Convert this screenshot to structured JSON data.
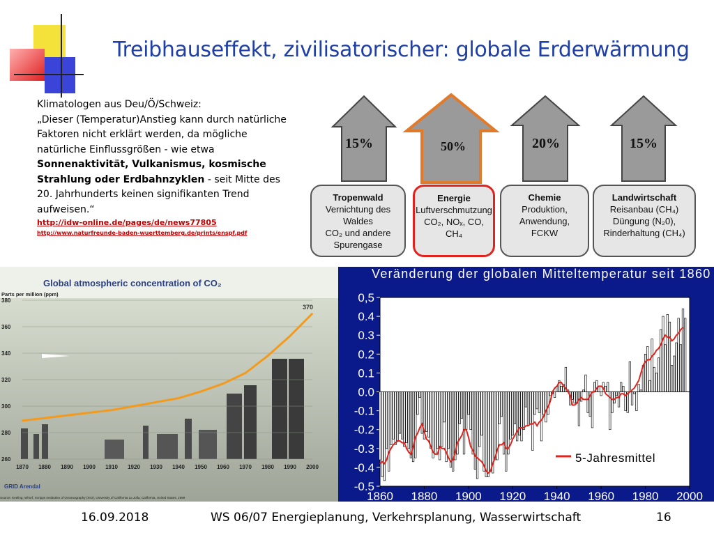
{
  "slide": {
    "title": "Treibhauseffekt, zivilisatorischer: globale Erderwärmung",
    "quote_lines": [
      {
        "text": "Klimatologen aus Deu/Ö/Schweiz:",
        "bold": false
      },
      {
        "text": "„Dieser (Temperatur)Anstieg kann durch natürliche",
        "bold": false
      },
      {
        "text": "Faktoren nicht erklärt werden, da mögliche",
        "bold": false
      },
      {
        "text": "natürliche Einflussgrößen - wie etwa",
        "bold": false
      }
    ],
    "quote_bold_1": "Sonnenaktivität, Vulkanismus, kosmische",
    "quote_bold_2": "Strahlung oder Erdbahnzyklen",
    "quote_rest_2": " - seit Mitte des",
    "quote_line_7": "20. Jahrhunderts keinen signifikanten Trend",
    "quote_line_8": "aufweisen.“",
    "link1": "http://idw-online.de/pages/de/news77805",
    "link2": "http://www.naturfreunde-baden-wuerttemberg.de/prints/enspf.pdf"
  },
  "diagram": {
    "arrows": [
      {
        "label": "15%",
        "highlight": false
      },
      {
        "label": "50%",
        "highlight": true
      },
      {
        "label": "20%",
        "highlight": false
      },
      {
        "label": "15%",
        "highlight": false
      }
    ],
    "boxes": [
      {
        "heading": "Tropenwald",
        "lines": [
          "Vernichtung des Waldes",
          "CO₂ und andere Spurengase"
        ],
        "highlight": false
      },
      {
        "heading": "Energie",
        "lines": [
          "Luftverschmutzung",
          "CO₂, NOₓ, CO, CH₄"
        ],
        "highlight": true
      },
      {
        "heading": "Chemie",
        "lines": [
          "Produktion, Anwendung,",
          "FCKW"
        ],
        "highlight": false
      },
      {
        "heading": "Landwirtschaft",
        "lines": [
          "Reisanbau (CH₄)",
          "Düngung (N₂0),",
          "Rinderhaltung (CH₄)"
        ],
        "highlight": false
      }
    ],
    "colors": {
      "highlight": "#e0231c",
      "arrow_fill": "#9a9a9a",
      "arrow_stroke": "#444444"
    }
  },
  "chart_data": [
    {
      "type": "line",
      "title": "Global atmospheric concentration of CO₂",
      "ylabel": "Parts per million (ppm)",
      "x": [
        1870,
        1880,
        1890,
        1900,
        1910,
        1920,
        1930,
        1940,
        1950,
        1960,
        1970,
        1980,
        1990,
        2000
      ],
      "series": [
        {
          "values": [
            289,
            291,
            293,
            295,
            297,
            300,
            303,
            306,
            311,
            317,
            325,
            338,
            353,
            370
          ]
        }
      ],
      "xticks": [
        "1870",
        "1880",
        "1890",
        "1900",
        "1910",
        "1920",
        "1930",
        "1940",
        "1950",
        "1960",
        "1970",
        "1980",
        "1990",
        "2000"
      ],
      "yticks": [
        "260",
        "280",
        "300",
        "320",
        "340",
        "360",
        "380"
      ],
      "ylim": [
        260,
        380
      ],
      "annotations": [
        "370"
      ],
      "source": "Source: Keeling, Whorf, Scripps Institution of Oceanography (SIO), University of California La Jolla, California, United States, 1999",
      "logo": "GRID Arendal",
      "colors": {
        "line": "#f39a1c"
      }
    },
    {
      "type": "bar",
      "title": "Veränderung der globalen Mitteltemperatur seit 1860",
      "x_range": [
        1860,
        2000
      ],
      "xticks": [
        "1860",
        "1880",
        "1900",
        "1920",
        "1940",
        "1960",
        "1980",
        "2000"
      ],
      "yticks": [
        "0,5",
        "0.4",
        "0.3",
        "0.2",
        "0.1",
        "0.0",
        "-0.1",
        "-0.2",
        "-0.3",
        "-0.4",
        "-0.5"
      ],
      "ylim": [
        -0.5,
        0.5
      ],
      "years": [
        1860,
        1861,
        1862,
        1863,
        1864,
        1865,
        1866,
        1867,
        1868,
        1869,
        1870,
        1871,
        1872,
        1873,
        1874,
        1875,
        1876,
        1877,
        1878,
        1879,
        1880,
        1881,
        1882,
        1883,
        1884,
        1885,
        1886,
        1887,
        1888,
        1889,
        1890,
        1891,
        1892,
        1893,
        1894,
        1895,
        1896,
        1897,
        1898,
        1899,
        1900,
        1901,
        1902,
        1903,
        1904,
        1905,
        1906,
        1907,
        1908,
        1909,
        1910,
        1911,
        1912,
        1913,
        1914,
        1915,
        1916,
        1917,
        1918,
        1919,
        1920,
        1921,
        1922,
        1923,
        1924,
        1925,
        1926,
        1927,
        1928,
        1929,
        1930,
        1931,
        1932,
        1933,
        1934,
        1935,
        1936,
        1937,
        1938,
        1939,
        1940,
        1941,
        1942,
        1943,
        1944,
        1945,
        1946,
        1947,
        1948,
        1949,
        1950,
        1951,
        1952,
        1953,
        1954,
        1955,
        1956,
        1957,
        1958,
        1959,
        1960,
        1961,
        1962,
        1963,
        1964,
        1965,
        1966,
        1967,
        1968,
        1969,
        1970,
        1971,
        1972,
        1973,
        1974,
        1975,
        1976,
        1977,
        1978,
        1979,
        1980,
        1981,
        1982,
        1983,
        1984,
        1985,
        1986,
        1987,
        1988,
        1989,
        1990,
        1991,
        1992,
        1993,
        1994,
        1995,
        1996,
        1997,
        1998
      ],
      "anomalies": [
        -0.36,
        -0.45,
        -0.47,
        -0.3,
        -0.42,
        -0.28,
        -0.25,
        -0.28,
        -0.26,
        -0.22,
        -0.25,
        -0.29,
        -0.27,
        -0.3,
        -0.35,
        -0.37,
        -0.35,
        -0.12,
        -0.03,
        -0.22,
        -0.25,
        -0.21,
        -0.24,
        -0.3,
        -0.35,
        -0.33,
        -0.3,
        -0.36,
        -0.29,
        -0.16,
        -0.37,
        -0.3,
        -0.4,
        -0.42,
        -0.36,
        -0.33,
        -0.17,
        -0.14,
        -0.33,
        -0.2,
        -0.12,
        -0.2,
        -0.33,
        -0.41,
        -0.46,
        -0.29,
        -0.23,
        -0.42,
        -0.45,
        -0.45,
        -0.42,
        -0.43,
        -0.36,
        -0.36,
        -0.17,
        -0.13,
        -0.33,
        -0.42,
        -0.33,
        -0.25,
        -0.23,
        -0.17,
        -0.26,
        -0.23,
        -0.26,
        -0.2,
        -0.08,
        -0.18,
        -0.17,
        -0.31,
        -0.12,
        -0.09,
        -0.11,
        -0.26,
        -0.12,
        -0.16,
        -0.12,
        -0.02,
        -0.01,
        -0.03,
        0.03,
        0.06,
        0.03,
        0.04,
        0.13,
        0.01,
        -0.07,
        -0.04,
        -0.06,
        -0.06,
        -0.18,
        -0.05,
        0.01,
        0.09,
        -0.11,
        -0.13,
        -0.19,
        0.05,
        0.06,
        0.03,
        -0.02,
        0.05,
        0.03,
        0.05,
        -0.2,
        -0.11,
        -0.06,
        -0.02,
        -0.08,
        0.05,
        0.03,
        -0.1,
        -0.11,
        0.16,
        -0.07,
        -0.01,
        -0.1,
        0.04,
        0.01,
        0.14,
        0.2,
        0.24,
        0.06,
        0.28,
        0.13,
        0.1,
        0.18,
        0.33,
        0.4,
        0.25,
        0.41,
        0.37,
        0.14,
        0.19,
        0.26,
        0.39,
        0.25,
        0.44,
        0.39
      ],
      "series": [
        {
          "name": "5-Jahresmittel",
          "values": [
            -0.38,
            -0.37,
            -0.38,
            -0.36,
            -0.32,
            -0.3,
            -0.28,
            -0.27,
            -0.26,
            -0.26,
            -0.27,
            -0.27,
            -0.3,
            -0.32,
            -0.33,
            -0.29,
            -0.24,
            -0.22,
            -0.19,
            -0.17,
            -0.21,
            -0.25,
            -0.26,
            -0.29,
            -0.32,
            -0.33,
            -0.33,
            -0.29,
            -0.3,
            -0.3,
            -0.32,
            -0.35,
            -0.37,
            -0.36,
            -0.32,
            -0.27,
            -0.25,
            -0.23,
            -0.2,
            -0.2,
            -0.24,
            -0.29,
            -0.31,
            -0.34,
            -0.35,
            -0.36,
            -0.37,
            -0.39,
            -0.42,
            -0.43,
            -0.42,
            -0.38,
            -0.35,
            -0.31,
            -0.28,
            -0.28,
            -0.27,
            -0.3,
            -0.3,
            -0.28,
            -0.25,
            -0.23,
            -0.21,
            -0.19,
            -0.19,
            -0.19,
            -0.18,
            -0.18,
            -0.17,
            -0.17,
            -0.16,
            -0.18,
            -0.16,
            -0.15,
            -0.13,
            -0.1,
            -0.08,
            -0.05,
            -0.0,
            0.02,
            0.03,
            0.05,
            0.05,
            0.03,
            0.02,
            -0.0,
            -0.02,
            -0.07,
            -0.07,
            -0.06,
            -0.04,
            -0.03,
            -0.04,
            -0.04,
            -0.04,
            -0.02,
            0.0,
            0.0,
            0.02,
            0.03,
            0.03,
            0.02,
            -0.01,
            -0.02,
            -0.03,
            -0.04,
            -0.04,
            -0.03,
            -0.03,
            -0.01,
            -0.01,
            -0.02,
            -0.01,
            0.0,
            0.01,
            0.02,
            0.04,
            0.06,
            0.1,
            0.14,
            0.16,
            0.17,
            0.17,
            0.19,
            0.2,
            0.22,
            0.23,
            0.25,
            0.28,
            0.3,
            0.29,
            0.29,
            0.27,
            0.28,
            0.3,
            0.31,
            0.33,
            0.34
          ]
        }
      ],
      "legend": "bottom-right",
      "colors": {
        "line": "#e0231c",
        "bar_fill": "#ffffff",
        "bar_stroke": "#111111"
      }
    }
  ],
  "footer": {
    "date": "16.09.2018",
    "course": "WS 06/07 Energieplanung, Verkehrsplanung, Wasserwirtschaft",
    "page": "16"
  }
}
